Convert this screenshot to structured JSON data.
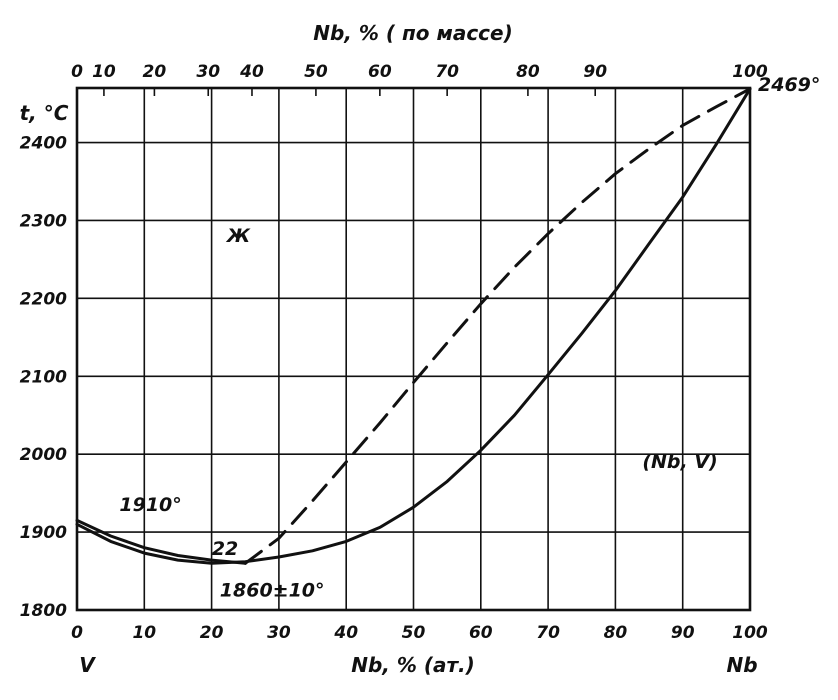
{
  "chart_data": {
    "type": "line",
    "title": "",
    "xlabel": "Nb, % (ат.)",
    "x2label": "Nb, % ( по массе)",
    "ylabel": "t, °C",
    "xlim": [
      0,
      100
    ],
    "ylim": [
      1800,
      2470
    ],
    "grid": true,
    "x_ticks": [
      "0",
      "10",
      "20",
      "30",
      "40",
      "50",
      "60",
      "70",
      "80",
      "90",
      "100"
    ],
    "x2_ticks": [
      "0",
      "10",
      "20",
      "30",
      "40",
      "50",
      "60",
      "70",
      "80",
      "90",
      "100"
    ],
    "x2_positions_at": [
      0,
      4,
      11.5,
      19.5,
      26,
      35.5,
      45,
      55,
      67,
      77,
      100
    ],
    "y_ticks": [
      "1800",
      "1900",
      "2000",
      "2100",
      "2200",
      "2300",
      "2400"
    ],
    "x_end_labels": {
      "left": "V",
      "right": "Nb"
    },
    "series": [
      {
        "style": "solid",
        "points": [
          [
            0,
            1910
          ],
          [
            5,
            1888
          ],
          [
            10,
            1873
          ],
          [
            15,
            1864
          ],
          [
            20,
            1860
          ],
          [
            25,
            1862
          ],
          [
            30,
            1868
          ],
          [
            35,
            1876
          ],
          [
            40,
            1888
          ],
          [
            45,
            1906
          ],
          [
            50,
            1932
          ],
          [
            55,
            1965
          ],
          [
            60,
            2005
          ],
          [
            65,
            2050
          ],
          [
            70,
            2102
          ],
          [
            75,
            2155
          ],
          [
            80,
            2210
          ],
          [
            85,
            2270
          ],
          [
            90,
            2330
          ],
          [
            95,
            2398
          ],
          [
            100,
            2469
          ]
        ]
      },
      {
        "style": "solid",
        "points": [
          [
            0,
            1915
          ],
          [
            5,
            1895
          ],
          [
            10,
            1880
          ],
          [
            15,
            1870
          ],
          [
            20,
            1864
          ],
          [
            25,
            1860
          ]
        ]
      },
      {
        "style": "dashed",
        "points": [
          [
            25,
            1860
          ],
          [
            30,
            1892
          ],
          [
            35,
            1940
          ],
          [
            40,
            1990
          ],
          [
            45,
            2040
          ],
          [
            50,
            2092
          ],
          [
            55,
            2143
          ],
          [
            60,
            2193
          ],
          [
            65,
            2240
          ],
          [
            70,
            2283
          ],
          [
            75,
            2323
          ],
          [
            80,
            2360
          ],
          [
            85,
            2392
          ],
          [
            90,
            2422
          ],
          [
            95,
            2446
          ],
          [
            100,
            2469
          ]
        ]
      }
    ],
    "annotations": [
      {
        "text": "2469°",
        "x": 100,
        "y": 2469
      },
      {
        "text": "Ж",
        "x": 24,
        "y": 2280
      },
      {
        "text": "(Nb, V)",
        "x": 84,
        "y": 1990
      },
      {
        "text": "1910°",
        "x": 6,
        "y": 1922
      },
      {
        "text": "22",
        "x": 22,
        "y": 1868
      },
      {
        "text": "1860±10°",
        "x": 23,
        "y": 1825
      }
    ]
  }
}
